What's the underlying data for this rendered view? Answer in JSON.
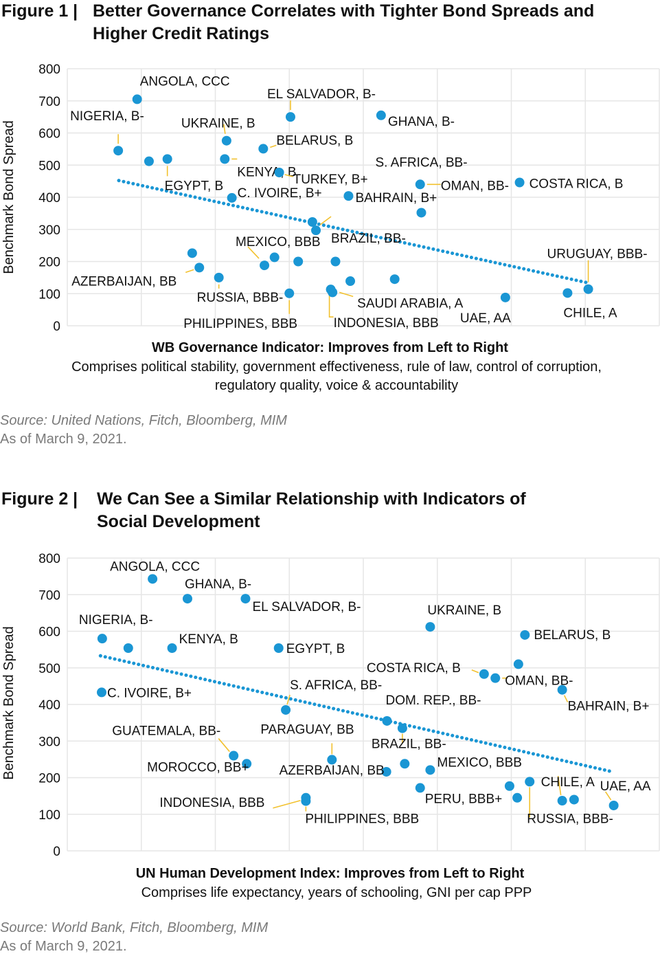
{
  "colors": {
    "point": "#1a96d4",
    "trend": "#1a96d4",
    "leader": "#f2c12e",
    "grid": "#e6e6e6",
    "source_text": "#7a7a7a"
  },
  "figure1": {
    "number": "Figure 1  |",
    "title_line1": "Better Governance Correlates with Tighter Bond Spreads and",
    "title_line2": "Higher Credit Ratings",
    "xlabel": "WB Governance Indicator: Improves from Left to Right",
    "xlabel_sub": "Comprises political stability, government effectiveness, rule of law, control of corruption, regulatory quality, voice & accountability",
    "source": "Source: United Nations, Fitch, Bloomberg, MIM",
    "as_of": "As of March 9, 2021."
  },
  "figure2": {
    "number": "Figure 2  |",
    "title_line1": "We Can See a Similar Relationship with Indicators of",
    "title_line2": "Social Development",
    "xlabel": "UN Human Development Index: Improves from Left to Right",
    "xlabel_sub": "Comprises life expectancy, years of schooling, GNI per cap PPP",
    "source": "Source: World Bank, Fitch, Bloomberg, MIM",
    "as_of": "As of March 9, 2021."
  },
  "chart_data": [
    {
      "type": "scatter",
      "title": "Better Governance Correlates with Tighter Bond Spreads and Higher Credit Ratings",
      "xlabel": "WB Governance Indicator: Improves from Left to Right",
      "ylabel": "Benchmark Bond Spread",
      "xlim": [
        0,
        100
      ],
      "ylim": [
        0,
        800
      ],
      "yticks": [
        0,
        100,
        200,
        300,
        400,
        500,
        600,
        700,
        800
      ],
      "xticks_labeled": false,
      "grid": true,
      "trendline": {
        "style": "dotted",
        "from": [
          8.7,
          452
        ],
        "to": [
          87.6,
          135
        ]
      },
      "points": [
        {
          "x": 8.6,
          "y": 545,
          "label": "NIGERIA, B-"
        },
        {
          "x": 11.8,
          "y": 705,
          "label": "ANGOLA, CCC"
        },
        {
          "x": 13.8,
          "y": 512
        },
        {
          "x": 16.9,
          "y": 519,
          "label": "EGYPT, B"
        },
        {
          "x": 21.1,
          "y": 226
        },
        {
          "x": 22.3,
          "y": 181,
          "label": "AZERBAIJAN, BB"
        },
        {
          "x": 25.6,
          "y": 150,
          "label": "RUSSIA, BBB-"
        },
        {
          "x": 26.6,
          "y": 519,
          "label": "KENYA, B"
        },
        {
          "x": 26.9,
          "y": 576,
          "label": "UKRAINE, B"
        },
        {
          "x": 27.8,
          "y": 398,
          "label": "C. IVOIRE, B+"
        },
        {
          "x": 33.3,
          "y": 188,
          "label": "MEXICO, BBB"
        },
        {
          "x": 33.1,
          "y": 551,
          "label": "BELARUS, B"
        },
        {
          "x": 35.0,
          "y": 213
        },
        {
          "x": 35.8,
          "y": 477,
          "label": "TURKEY, B+"
        },
        {
          "x": 37.5,
          "y": 101,
          "label": "PHILIPPINES, BBB"
        },
        {
          "x": 37.7,
          "y": 650,
          "label": "EL SALVADOR, B-"
        },
        {
          "x": 39.0,
          "y": 200
        },
        {
          "x": 41.4,
          "y": 323
        },
        {
          "x": 42.0,
          "y": 297,
          "label": "BRAZIL, BB-"
        },
        {
          "x": 44.5,
          "y": 113,
          "label": "INDONESIA, BBB"
        },
        {
          "x": 44.8,
          "y": 104,
          "label": "SAUDI ARABIA, A"
        },
        {
          "x": 45.3,
          "y": 200
        },
        {
          "x": 47.5,
          "y": 404,
          "label": "BAHRAIN, B+"
        },
        {
          "x": 47.8,
          "y": 139
        },
        {
          "x": 53.0,
          "y": 655,
          "label": "GHANA, B-"
        },
        {
          "x": 55.3,
          "y": 145
        },
        {
          "x": 59.6,
          "y": 440,
          "label": "OMAN, BB-"
        },
        {
          "x": 59.8,
          "y": 352,
          "label": "S. AFRICA, BB-"
        },
        {
          "x": 74.0,
          "y": 88,
          "label": "UAE, AA"
        },
        {
          "x": 76.4,
          "y": 446,
          "label": "COSTA RICA, B"
        },
        {
          "x": 84.5,
          "y": 102,
          "label": "CHILE, A"
        },
        {
          "x": 88.0,
          "y": 114,
          "label": "URUGUAY, BBB-"
        }
      ]
    },
    {
      "type": "scatter",
      "title": "We Can See a Similar Relationship with Indicators of Social Development",
      "xlabel": "UN Human Development Index: Improves from Left to Right",
      "ylabel": "Benchmark Bond Spread",
      "xlim": [
        0,
        100
      ],
      "ylim": [
        0,
        800
      ],
      "yticks": [
        0,
        100,
        200,
        300,
        400,
        500,
        600,
        700,
        800
      ],
      "xticks_labeled": false,
      "grid": true,
      "trendline": {
        "style": "dotted",
        "from": [
          5.6,
          533
        ],
        "to": [
          92.1,
          216
        ]
      },
      "points": [
        {
          "x": 5.8,
          "y": 433,
          "label": "C. IVOIRE, B+"
        },
        {
          "x": 5.9,
          "y": 580,
          "label": "NIGERIA, B-"
        },
        {
          "x": 10.3,
          "y": 554
        },
        {
          "x": 14.4,
          "y": 743,
          "label": "ANGOLA, CCC"
        },
        {
          "x": 17.7,
          "y": 554,
          "label": "KENYA, B"
        },
        {
          "x": 20.3,
          "y": 689,
          "label": "GHANA, B-"
        },
        {
          "x": 28.1,
          "y": 260,
          "label": "GUATEMALA, BB-"
        },
        {
          "x": 30.3,
          "y": 238,
          "label": "MOROCCO, BB+"
        },
        {
          "x": 30.1,
          "y": 689,
          "label": "EL SALVADOR, B-"
        },
        {
          "x": 35.7,
          "y": 554,
          "label": "EGYPT, B"
        },
        {
          "x": 36.9,
          "y": 385,
          "label": "S. AFRICA, BB-"
        },
        {
          "x": 40.3,
          "y": 145,
          "label": "INDONESIA, BBB"
        },
        {
          "x": 40.3,
          "y": 136,
          "label": "PHILIPPINES, BBB"
        },
        {
          "x": 44.7,
          "y": 249,
          "label": "PARAGUAY, BB"
        },
        {
          "x": 53.9,
          "y": 216,
          "label": "AZERBAIJAN, BB"
        },
        {
          "x": 54.0,
          "y": 355,
          "label": "DOM. REP., BB-"
        },
        {
          "x": 56.6,
          "y": 335,
          "label": "BRAZIL, BB-"
        },
        {
          "x": 57.0,
          "y": 238
        },
        {
          "x": 59.6,
          "y": 172,
          "label": "PERU, BBB+"
        },
        {
          "x": 61.3,
          "y": 221,
          "label": "MEXICO, BBB"
        },
        {
          "x": 61.3,
          "y": 612,
          "label": "UKRAINE, B"
        },
        {
          "x": 70.4,
          "y": 483,
          "label": "COSTA RICA, B"
        },
        {
          "x": 72.3,
          "y": 472,
          "label": "OMAN, BB-"
        },
        {
          "x": 74.7,
          "y": 177
        },
        {
          "x": 76.0,
          "y": 145
        },
        {
          "x": 76.2,
          "y": 510
        },
        {
          "x": 77.3,
          "y": 590,
          "label": "BELARUS, B"
        },
        {
          "x": 78.1,
          "y": 189,
          "label": "RUSSIA, BBB-"
        },
        {
          "x": 83.6,
          "y": 440,
          "label": "BAHRAIN, B+"
        },
        {
          "x": 83.6,
          "y": 137,
          "label": "CHILE, A"
        },
        {
          "x": 85.6,
          "y": 140
        },
        {
          "x": 92.3,
          "y": 124,
          "label": "UAE, AA"
        }
      ]
    }
  ]
}
